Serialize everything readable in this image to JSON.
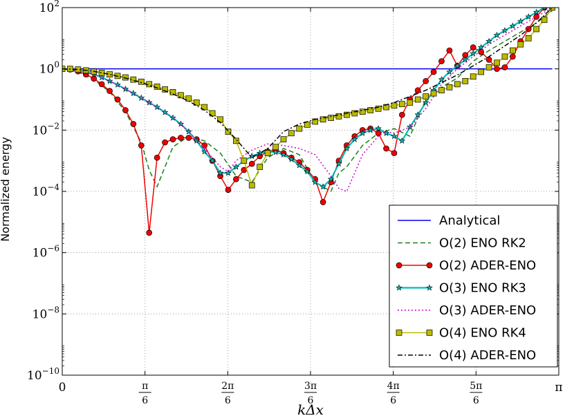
{
  "chart_data": {
    "type": "line",
    "title": "",
    "xlabel": "kΔx",
    "ylabel": "Normalized energy",
    "xlim": [
      0,
      3.14159
    ],
    "ylim_exp": [
      -10,
      2
    ],
    "yscale": "log",
    "grid": true,
    "legend_position": "bottom-right",
    "x_ticks": [
      {
        "value": 0,
        "label": "0",
        "num": "",
        "den": ""
      },
      {
        "value": 0.5236,
        "label": "",
        "num": "π",
        "den": "6"
      },
      {
        "value": 1.0472,
        "label": "",
        "num": "2π",
        "den": "6"
      },
      {
        "value": 1.5708,
        "label": "",
        "num": "3π",
        "den": "6"
      },
      {
        "value": 2.0944,
        "label": "",
        "num": "4π",
        "den": "6"
      },
      {
        "value": 2.618,
        "label": "",
        "num": "5π",
        "den": "6"
      },
      {
        "value": 3.1416,
        "label": "π",
        "num": "",
        "den": ""
      }
    ],
    "y_ticks": [
      {
        "exp": 2,
        "base": "10",
        "sup": "2"
      },
      {
        "exp": 0,
        "base": "10",
        "sup": "0"
      },
      {
        "exp": -2,
        "base": "10",
        "sup": "−2"
      },
      {
        "exp": -4,
        "base": "10",
        "sup": "−4"
      },
      {
        "exp": -6,
        "base": "10",
        "sup": "−6"
      },
      {
        "exp": -8,
        "base": "10",
        "sup": "−8"
      },
      {
        "exp": -10,
        "base": "10",
        "sup": "−10"
      }
    ],
    "series": [
      {
        "name": "Analytical",
        "color": "#0000ee",
        "style": "solid",
        "marker": "none",
        "x": [
          0,
          3.1
        ],
        "y_exp": [
          0,
          0
        ]
      },
      {
        "name": "O(2) ENO RK2",
        "color": "#1a801a",
        "style": "dashed",
        "marker": "none",
        "x": [
          0,
          0.1,
          0.2,
          0.3,
          0.4,
          0.5,
          0.55,
          0.6,
          0.65,
          0.7,
          0.8,
          0.9,
          1.0,
          1.1,
          1.2,
          1.3,
          1.4,
          1.5,
          1.6,
          1.7,
          1.75,
          1.8,
          1.9,
          2.0,
          2.1,
          2.2,
          2.3,
          2.4,
          2.5,
          2.6,
          2.7,
          2.8,
          2.9,
          3.0,
          3.1
        ],
        "y_exp": [
          0,
          -0.1,
          -0.35,
          -0.75,
          -1.4,
          -2.4,
          -3.3,
          -3.85,
          -3.2,
          -2.55,
          -2.2,
          -2.35,
          -2.75,
          -3.5,
          -3.7,
          -2.9,
          -2.6,
          -2.8,
          -3.7,
          -4.0,
          -3.4,
          -3.2,
          -2.5,
          -2.1,
          -1.95,
          -2.2,
          -1.0,
          -0.6,
          -0.3,
          0.25,
          0.6,
          0.9,
          1.2,
          1.5,
          1.9
        ]
      },
      {
        "name": "O(2) ADER-ENO",
        "color": "#ee0000",
        "style": "solid",
        "marker": "circle",
        "x": [
          0,
          0.05,
          0.1,
          0.15,
          0.2,
          0.25,
          0.3,
          0.35,
          0.4,
          0.45,
          0.5,
          0.55,
          0.6,
          0.65,
          0.7,
          0.75,
          0.8,
          0.85,
          0.9,
          0.95,
          1.0,
          1.05,
          1.1,
          1.15,
          1.2,
          1.25,
          1.3,
          1.35,
          1.4,
          1.45,
          1.5,
          1.55,
          1.6,
          1.65,
          1.7,
          1.75,
          1.8,
          1.85,
          1.9,
          1.95,
          2.0,
          2.05,
          2.1,
          2.15,
          2.2,
          2.25,
          2.3,
          2.35,
          2.4,
          2.45,
          2.5,
          2.55,
          2.6,
          2.65,
          2.7,
          2.75,
          2.8,
          2.85,
          2.9,
          2.95,
          3.0,
          3.05,
          3.1
        ],
        "y_exp": [
          0,
          -0.02,
          -0.08,
          -0.18,
          -0.32,
          -0.5,
          -0.72,
          -1.0,
          -1.35,
          -1.8,
          -2.5,
          -5.35,
          -2.9,
          -2.4,
          -2.3,
          -2.25,
          -2.25,
          -2.3,
          -2.5,
          -3.0,
          -3.5,
          -3.95,
          -3.6,
          -3.3,
          -3.1,
          -2.85,
          -2.7,
          -2.65,
          -2.75,
          -2.9,
          -3.05,
          -3.3,
          -3.6,
          -4.35,
          -3.7,
          -3.0,
          -2.5,
          -2.2,
          -2.0,
          -1.95,
          -2.1,
          -2.6,
          -2.75,
          -1.5,
          -1.0,
          -0.7,
          -0.4,
          -0.1,
          0.25,
          0.6,
          0.1,
          0.45,
          0.7,
          0.55,
          0.3,
          0.0,
          0.05,
          0.4,
          0.9,
          1.3,
          1.7,
          2.0,
          2.1
        ]
      },
      {
        "name": "O(3) ENO RK3",
        "color": "#00bbbb",
        "style": "solid",
        "marker": "star",
        "x": [
          0,
          0.05,
          0.1,
          0.15,
          0.2,
          0.25,
          0.3,
          0.35,
          0.4,
          0.45,
          0.5,
          0.55,
          0.6,
          0.65,
          0.7,
          0.75,
          0.8,
          0.85,
          0.9,
          0.95,
          1.0,
          1.05,
          1.1,
          1.15,
          1.2,
          1.25,
          1.3,
          1.35,
          1.4,
          1.45,
          1.5,
          1.55,
          1.6,
          1.65,
          1.7,
          1.75,
          1.8,
          1.85,
          1.9,
          1.95,
          2.0,
          2.05,
          2.1,
          2.15,
          2.2,
          2.25,
          2.3,
          2.35,
          2.4,
          2.45,
          2.5,
          2.55,
          2.6,
          2.65,
          2.7,
          2.75,
          2.8,
          2.85,
          2.9,
          2.95,
          3.0,
          3.05,
          3.1
        ],
        "y_exp": [
          0,
          -0.01,
          -0.04,
          -0.1,
          -0.18,
          -0.28,
          -0.4,
          -0.52,
          -0.66,
          -0.8,
          -0.95,
          -1.1,
          -1.25,
          -1.42,
          -1.6,
          -1.8,
          -2.05,
          -2.35,
          -2.7,
          -3.0,
          -3.4,
          -3.4,
          -3.2,
          -3.0,
          -2.85,
          -2.75,
          -2.7,
          -2.72,
          -2.8,
          -2.95,
          -3.15,
          -3.35,
          -3.7,
          -3.85,
          -3.6,
          -3.1,
          -2.6,
          -2.3,
          -2.1,
          -2.0,
          -1.95,
          -2.1,
          -2.2,
          -2.35,
          -1.9,
          -1.5,
          -1.1,
          -0.7,
          -0.35,
          -0.1,
          0.1,
          0.3,
          0.5,
          0.7,
          0.9,
          1.1,
          1.25,
          1.4,
          1.55,
          1.7,
          1.85,
          2.0,
          2.1
        ]
      },
      {
        "name": "O(3) ADER-ENO",
        "color": "#cc00cc",
        "style": "dotted",
        "marker": "none",
        "x": [
          0,
          0.1,
          0.2,
          0.3,
          0.4,
          0.5,
          0.6,
          0.7,
          0.8,
          0.9,
          1.0,
          1.05,
          1.1,
          1.2,
          1.3,
          1.4,
          1.5,
          1.6,
          1.7,
          1.75,
          1.8,
          1.85,
          1.9,
          2.0,
          2.05,
          2.1,
          2.2,
          2.3,
          2.4,
          2.5,
          2.6,
          2.7,
          2.8,
          2.9,
          3.0,
          3.1
        ],
        "y_exp": [
          0,
          -0.04,
          -0.18,
          -0.4,
          -0.66,
          -0.95,
          -1.25,
          -1.6,
          -2.05,
          -2.6,
          -3.2,
          -3.35,
          -3.0,
          -2.65,
          -2.45,
          -2.5,
          -2.6,
          -2.8,
          -3.5,
          -3.9,
          -4.0,
          -3.4,
          -2.8,
          -2.2,
          -2.05,
          -2.1,
          -1.9,
          -1.3,
          -0.5,
          0.0,
          0.4,
          0.8,
          1.1,
          1.4,
          1.7,
          2.0
        ]
      },
      {
        "name": "O(4) ENO RK4",
        "color": "#bbbb00",
        "style": "solid",
        "marker": "square",
        "x": [
          0,
          0.05,
          0.1,
          0.15,
          0.2,
          0.25,
          0.3,
          0.35,
          0.4,
          0.45,
          0.5,
          0.55,
          0.6,
          0.65,
          0.7,
          0.75,
          0.8,
          0.85,
          0.9,
          0.95,
          1.0,
          1.05,
          1.1,
          1.15,
          1.2,
          1.25,
          1.3,
          1.35,
          1.4,
          1.45,
          1.5,
          1.55,
          1.6,
          1.65,
          1.7,
          1.75,
          1.8,
          1.85,
          1.9,
          1.95,
          2.0,
          2.05,
          2.1,
          2.15,
          2.2,
          2.25,
          2.3,
          2.35,
          2.4,
          2.45,
          2.5,
          2.55,
          2.6,
          2.65,
          2.7,
          2.75,
          2.8,
          2.85,
          2.9,
          2.95,
          3.0,
          3.05,
          3.1
        ],
        "y_exp": [
          0,
          0.0,
          -0.02,
          -0.05,
          -0.09,
          -0.13,
          -0.18,
          -0.23,
          -0.28,
          -0.35,
          -0.42,
          -0.5,
          -0.58,
          -0.67,
          -0.76,
          -0.86,
          -0.97,
          -1.1,
          -1.25,
          -1.45,
          -1.65,
          -2.05,
          -2.35,
          -3.0,
          -3.8,
          -3.2,
          -2.75,
          -2.55,
          -2.3,
          -2.1,
          -1.95,
          -1.82,
          -1.72,
          -1.65,
          -1.6,
          -1.55,
          -1.5,
          -1.45,
          -1.4,
          -1.35,
          -1.3,
          -1.25,
          -1.2,
          -1.15,
          -1.1,
          -1.0,
          -0.9,
          -0.8,
          -0.7,
          -0.6,
          -0.5,
          -0.4,
          -0.25,
          -0.1,
          0.05,
          0.2,
          0.4,
          0.6,
          0.8,
          1.0,
          1.3,
          1.6,
          2.0
        ]
      },
      {
        "name": "O(4) ADER-ENO",
        "color": "#000000",
        "style": "dashdot",
        "marker": "none",
        "x": [
          0,
          0.1,
          0.2,
          0.3,
          0.4,
          0.5,
          0.6,
          0.7,
          0.8,
          0.9,
          1.0,
          1.1,
          1.2,
          1.3,
          1.4,
          1.5,
          1.6,
          1.7,
          1.8,
          1.9,
          2.0,
          2.1,
          2.2,
          2.3,
          2.4,
          2.5,
          2.6,
          2.7,
          2.8,
          2.9,
          3.0,
          3.1
        ],
        "y_exp": [
          0,
          -0.02,
          -0.08,
          -0.18,
          -0.3,
          -0.45,
          -0.62,
          -0.82,
          -1.05,
          -1.35,
          -1.75,
          -2.3,
          -2.9,
          -2.6,
          -2.05,
          -1.8,
          -1.65,
          -1.55,
          -1.45,
          -1.35,
          -1.25,
          -1.1,
          -0.9,
          -0.7,
          -0.45,
          -0.2,
          0.1,
          0.4,
          0.75,
          1.1,
          1.5,
          2.0
        ]
      }
    ]
  }
}
